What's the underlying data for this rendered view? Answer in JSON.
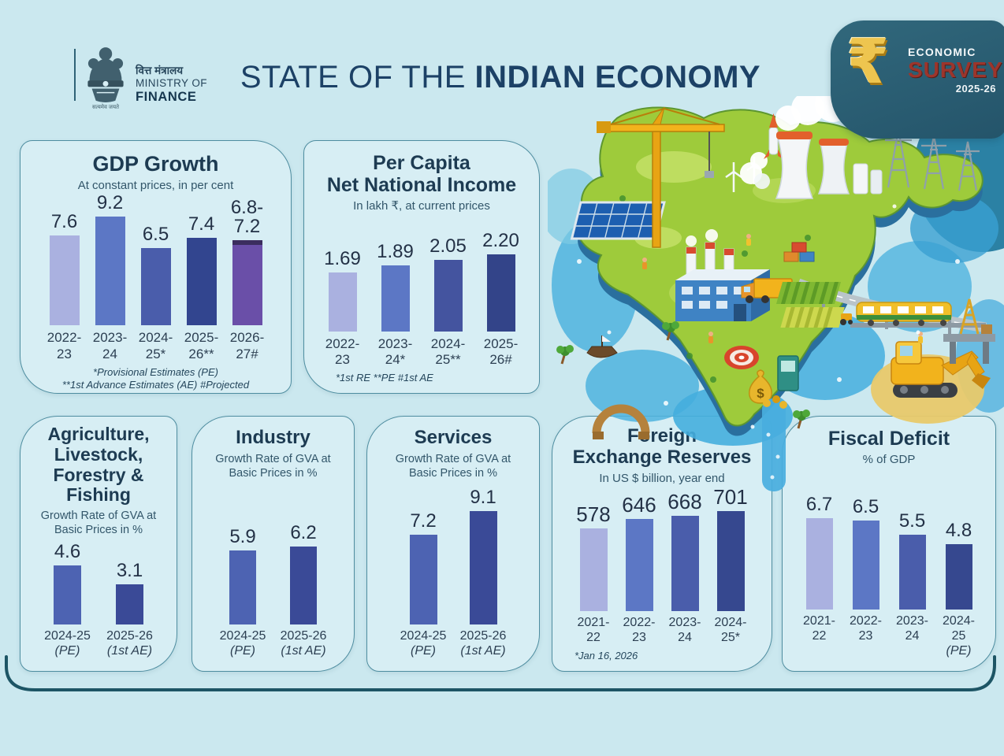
{
  "header": {
    "ministry": {
      "hindi": "वित्त मंत्रालय",
      "line2": "MINISTRY OF",
      "line3": "FINANCE",
      "motto": "सत्यमेव जयते"
    },
    "title_light": "STATE OF THE",
    "title_bold": "INDIAN ECONOMY",
    "badge": {
      "rupee": "₹",
      "economic": "ECONOMIC",
      "survey": "SURVEY",
      "year": "2025-26"
    }
  },
  "colors": {
    "background": "#cbe8ef",
    "panel": "#d7eef4",
    "panel_border": "#4e8da0",
    "title_navy": "#1c4166",
    "chart_title": "#1d3b52",
    "subtitle": "#32566a",
    "badge_bg": "#2a5e72",
    "badge_survey_red": "#9c352c",
    "rupee_gold": "#eec54f",
    "bottom_rule": "#1d5565",
    "bar_lightest": "#aab1e0",
    "bar_light": "#5c77c5",
    "bar_medium": "#4a5dab",
    "bar_dark": "#36488f",
    "bar_purple": "#6a4fa8",
    "bar_purple_cap": "#3b2d5e"
  },
  "chart_data": [
    {
      "id": "gdp-growth",
      "type": "bar",
      "title": "GDP Growth",
      "subtitle": "At constant prices, in per cent",
      "categories": [
        "2022-\n23",
        "2023-\n24",
        "2024-\n25*",
        "2025-\n26**",
        "2026-\n27#"
      ],
      "values": [
        7.6,
        9.2,
        6.5,
        7.4,
        7.2
      ],
      "displays": [
        "7.6",
        "9.2",
        "6.5",
        "7.4",
        "6.8-\n7.2"
      ],
      "colors": [
        "#aab1e0",
        "#5c77c5",
        "#4a5dab",
        "#32458f",
        "#6a4fa8"
      ],
      "range_bar": {
        "index": 4,
        "low": 6.8,
        "high": 7.2,
        "cap_color": "#3b2d5e"
      },
      "footnotes": [
        "*Provisional Estimates (PE)",
        "**1st Advance Estimates (AE)  #Projected"
      ],
      "ylim": [
        0,
        10
      ],
      "grid": false,
      "legend": "none"
    },
    {
      "id": "per-capita-net-national-income",
      "type": "bar",
      "title": "Per Capita\nNet National Income",
      "subtitle": "In lakh ₹, at current prices",
      "categories": [
        "2022-\n23",
        "2023-\n24*",
        "2024-\n25**",
        "2025-\n26#"
      ],
      "values": [
        1.69,
        1.89,
        2.05,
        2.2
      ],
      "displays": [
        "1.69",
        "1.89",
        "2.05",
        "2.20"
      ],
      "colors": [
        "#aab1e0",
        "#5c77c5",
        "#44549f",
        "#334489"
      ],
      "footnotes": [
        "*1st RE  **PE  #1st AE"
      ],
      "ylim": [
        0,
        2.5
      ],
      "grid": false,
      "legend": "none"
    },
    {
      "id": "agriculture-livestock-forestry-fishing-gva",
      "type": "bar",
      "title": "Agriculture,\nLivestock,\nForestry &\nFishing",
      "subtitle": "Growth Rate of GVA at\nBasic Prices in %",
      "categories": [
        "2024-25\n(PE)",
        "2025-26\n(1st AE)"
      ],
      "values": [
        4.6,
        3.1
      ],
      "displays": [
        "4.6",
        "3.1"
      ],
      "colors": [
        "#4d63b2",
        "#3a4a97"
      ],
      "footnotes": [],
      "ylim": [
        0,
        5
      ],
      "grid": false,
      "legend": "none"
    },
    {
      "id": "industry-gva",
      "type": "bar",
      "title": "Industry",
      "subtitle": "Growth Rate of GVA at\nBasic Prices in %",
      "categories": [
        "2024-25\n(PE)",
        "2025-26\n(1st AE)"
      ],
      "values": [
        5.9,
        6.2
      ],
      "displays": [
        "5.9",
        "6.2"
      ],
      "colors": [
        "#4d63b2",
        "#3a4a97"
      ],
      "footnotes": [],
      "ylim": [
        0,
        7
      ],
      "grid": false,
      "legend": "none"
    },
    {
      "id": "services-gva",
      "type": "bar",
      "title": "Services",
      "subtitle": "Growth Rate of GVA at\nBasic Prices in %",
      "categories": [
        "2024-25\n(PE)",
        "2025-26\n(1st AE)"
      ],
      "values": [
        7.2,
        9.1
      ],
      "displays": [
        "7.2",
        "9.1"
      ],
      "colors": [
        "#4d63b2",
        "#3a4a97"
      ],
      "footnotes": [],
      "ylim": [
        0,
        10
      ],
      "grid": false,
      "legend": "none"
    },
    {
      "id": "foreign-exchange-reserves",
      "type": "bar",
      "title": "Foreign\nExchange Reserves",
      "subtitle": "In US $ billion, year end",
      "categories": [
        "2021-\n22",
        "2022-\n23",
        "2023-\n24",
        "2024-\n25*"
      ],
      "values": [
        578,
        646,
        668,
        701
      ],
      "displays": [
        "578",
        "646",
        "668",
        "701"
      ],
      "colors": [
        "#aab1e0",
        "#5c77c5",
        "#4a5dab",
        "#36488f"
      ],
      "footnotes": [
        "*Jan 16, 2026"
      ],
      "ylim": [
        0,
        750
      ],
      "grid": false,
      "legend": "none"
    },
    {
      "id": "fiscal-deficit",
      "type": "bar",
      "title": "Fiscal Deficit",
      "subtitle": "% of GDP",
      "categories": [
        "2021-\n22",
        "2022-\n23",
        "2023-\n24",
        "2024-\n25\n(PE)"
      ],
      "values": [
        6.7,
        6.5,
        5.5,
        4.8
      ],
      "displays": [
        "6.7",
        "6.5",
        "5.5",
        "4.8"
      ],
      "colors": [
        "#aab1e0",
        "#5c77c5",
        "#4a5dab",
        "#36488f"
      ],
      "footnotes": [],
      "ylim": [
        0,
        7
      ],
      "grid": false,
      "legend": "none"
    }
  ],
  "illustration": {
    "money_symbol": "$"
  }
}
